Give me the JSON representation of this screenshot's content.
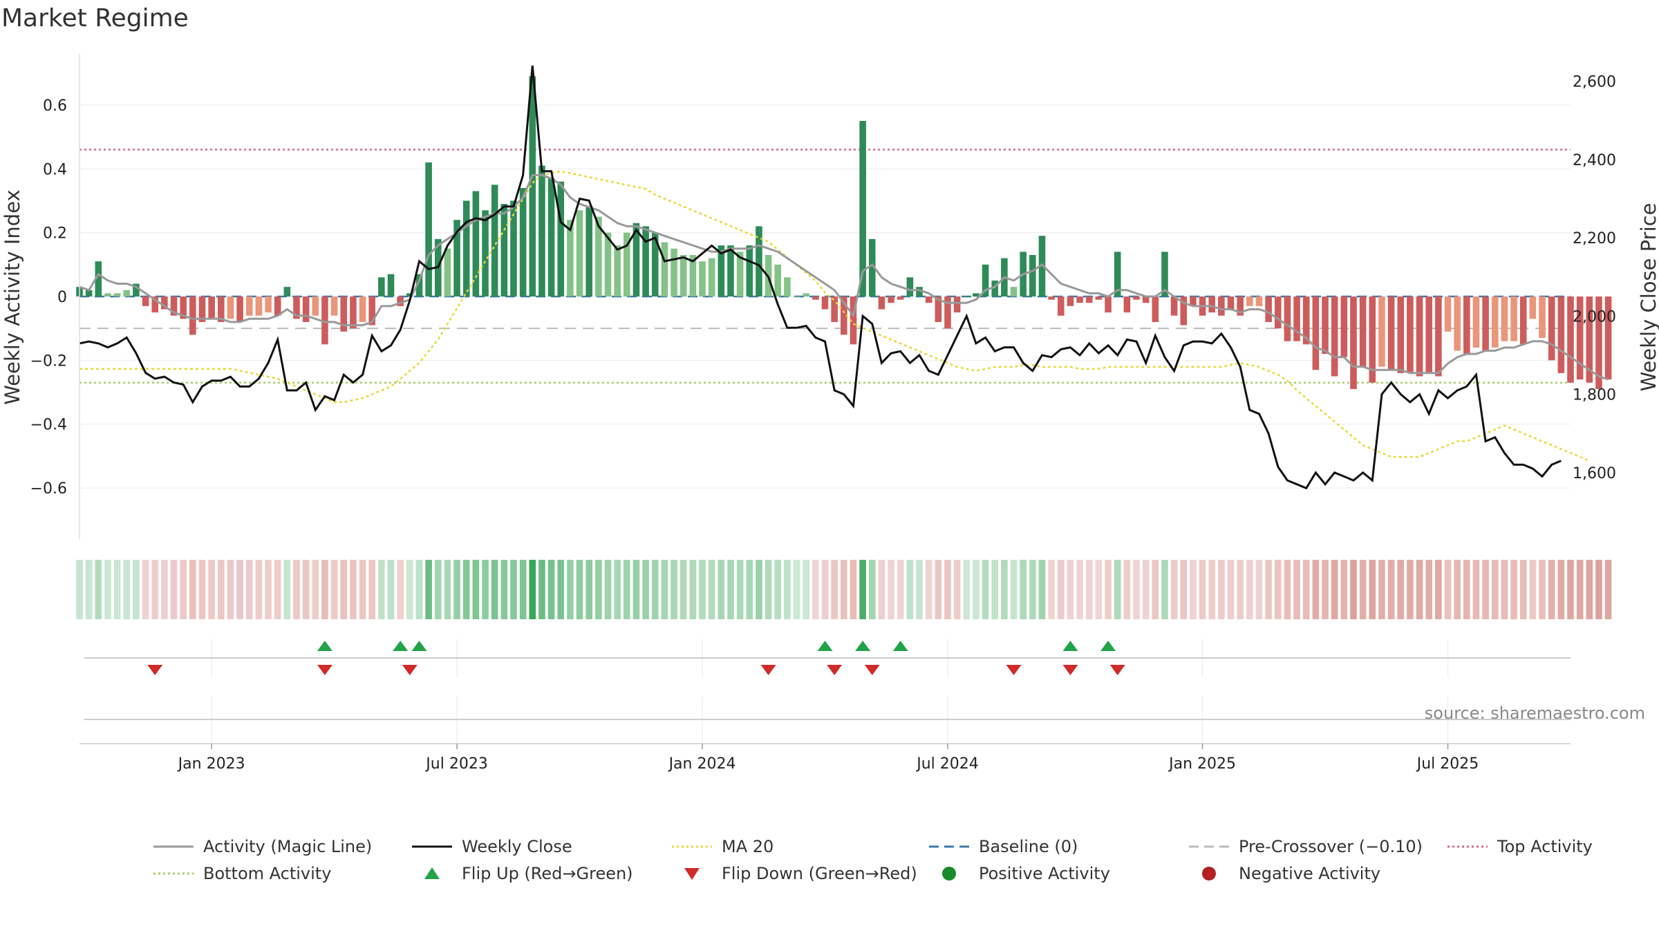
{
  "title": "Market Regime",
  "source": "source: sharemaestro.com",
  "colors": {
    "activity": "#999999",
    "close": "#111111",
    "ma20": "#e8d83a",
    "baseline": "#3a78a8",
    "pre_crossover": "#bbbbbb",
    "top": "#d8678a",
    "bottom": "#a7cc6a",
    "flip_up": "#22a34a",
    "flip_down": "#d12a2a",
    "pos_dark": "#2e8b57",
    "pos_light": "#84c287",
    "neg_dark": "#cd5c5c",
    "neg_light": "#e9967a",
    "pos_point": "#1a8a2a",
    "neg_point": "#b22222"
  },
  "chart_data": {
    "type": "bar",
    "y_left": {
      "label": "Weekly Activity Index",
      "ticks": [
        0.6,
        0.4,
        0.2,
        0,
        -0.2,
        -0.4,
        -0.6
      ],
      "tick_labels": [
        "0.6",
        "0.4",
        "0.2",
        "0",
        "−0.2",
        "−0.4",
        "−0.6"
      ],
      "ylim": [
        -0.76,
        0.76
      ]
    },
    "y_right": {
      "label": "Weekly Close Price",
      "ticks": [
        2600,
        2400,
        2200,
        2000,
        1800,
        1600
      ],
      "tick_labels": [
        "2,600",
        "2,400",
        "2,200",
        "2,000",
        "1,800",
        "1,600"
      ],
      "ylim": [
        1430,
        2670
      ]
    },
    "x_axis": {
      "start": "2022-09-26",
      "end": "2025-10-06",
      "tick_dates": [
        "2023-01-02",
        "2023-07-03",
        "2024-01-01",
        "2024-07-01",
        "2025-01-06",
        "2025-07-07"
      ],
      "tick_labels": [
        "Jan 2023",
        "Jul 2023",
        "Jan 2024",
        "Jul 2024",
        "Jan 2025",
        "Jul 2025"
      ]
    },
    "reference_lines": {
      "baseline": 0,
      "pre_crossover": -0.1,
      "top_activity": 0.46,
      "bottom_activity": -0.27
    },
    "activity_weekly": [
      0.03,
      0.02,
      0.11,
      0.01,
      0.01,
      0.02,
      0.04,
      -0.03,
      -0.05,
      -0.04,
      -0.06,
      -0.07,
      -0.12,
      -0.08,
      -0.07,
      -0.08,
      -0.07,
      -0.08,
      -0.06,
      -0.06,
      -0.05,
      -0.06,
      0.03,
      -0.07,
      -0.08,
      -0.06,
      -0.15,
      -0.06,
      -0.11,
      -0.1,
      -0.08,
      -0.09,
      0.06,
      0.07,
      -0.03,
      0.01,
      0.07,
      0.42,
      0.18,
      0.15,
      0.24,
      0.3,
      0.33,
      0.27,
      0.35,
      0.29,
      0.3,
      0.34,
      0.69,
      0.41,
      0.37,
      0.36,
      0.24,
      0.27,
      0.28,
      0.25,
      0.2,
      0.16,
      0.2,
      0.23,
      0.22,
      0.2,
      0.17,
      0.15,
      0.13,
      0.13,
      0.11,
      0.12,
      0.16,
      0.16,
      0.14,
      0.16,
      0.22,
      0.13,
      0.1,
      0.06,
      0.0,
      0.01,
      -0.01,
      -0.04,
      -0.08,
      -0.12,
      -0.15,
      0.55,
      0.18,
      -0.04,
      -0.02,
      -0.01,
      0.06,
      0.03,
      -0.02,
      -0.08,
      -0.1,
      -0.05,
      0.0,
      0.01,
      0.1,
      0.05,
      0.12,
      0.03,
      0.14,
      0.13,
      0.19,
      -0.01,
      -0.06,
      -0.03,
      -0.02,
      -0.02,
      -0.01,
      -0.05,
      0.14,
      -0.05,
      -0.01,
      -0.02,
      -0.08,
      0.14,
      -0.06,
      -0.09,
      -0.03,
      -0.06,
      -0.05,
      -0.06,
      -0.04,
      -0.06,
      -0.03,
      -0.03,
      -0.08,
      -0.1,
      -0.14,
      -0.14,
      -0.15,
      -0.23,
      -0.18,
      -0.25,
      -0.19,
      -0.29,
      -0.22,
      -0.27,
      -0.22,
      -0.23,
      -0.24,
      -0.24,
      -0.25,
      -0.24,
      -0.25,
      -0.11,
      -0.17,
      -0.18,
      -0.16,
      -0.17,
      -0.16,
      -0.14,
      -0.14,
      -0.15,
      -0.07,
      -0.13,
      -0.2,
      -0.24,
      -0.27,
      -0.26,
      -0.27,
      -0.29,
      -0.26
    ],
    "magic_line_weekly": [
      0.03,
      0.02,
      0.07,
      0.05,
      0.04,
      0.04,
      0.03,
      0.01,
      -0.01,
      -0.03,
      -0.05,
      -0.06,
      -0.07,
      -0.07,
      -0.07,
      -0.07,
      -0.08,
      -0.08,
      -0.07,
      -0.07,
      -0.07,
      -0.06,
      -0.04,
      -0.06,
      -0.06,
      -0.07,
      -0.08,
      -0.08,
      -0.09,
      -0.09,
      -0.09,
      -0.08,
      -0.03,
      -0.03,
      -0.02,
      -0.01,
      0.05,
      0.13,
      0.16,
      0.18,
      0.2,
      0.22,
      0.24,
      0.25,
      0.26,
      0.26,
      0.28,
      0.31,
      0.38,
      0.38,
      0.37,
      0.35,
      0.31,
      0.29,
      0.28,
      0.27,
      0.25,
      0.23,
      0.22,
      0.22,
      0.21,
      0.2,
      0.19,
      0.18,
      0.17,
      0.16,
      0.15,
      0.14,
      0.14,
      0.15,
      0.15,
      0.15,
      0.16,
      0.15,
      0.14,
      0.12,
      0.1,
      0.08,
      0.06,
      0.04,
      0.02,
      -0.02,
      -0.06,
      0.08,
      0.1,
      0.06,
      0.04,
      0.03,
      0.02,
      0.02,
      0.01,
      -0.01,
      -0.02,
      -0.02,
      -0.02,
      -0.01,
      0.02,
      0.03,
      0.06,
      0.05,
      0.07,
      0.08,
      0.1,
      0.07,
      0.04,
      0.03,
      0.02,
      0.01,
      0.01,
      0.0,
      0.02,
      0.02,
      0.01,
      0.0,
      0.0,
      0.02,
      0.0,
      -0.02,
      -0.03,
      -0.03,
      -0.03,
      -0.04,
      -0.04,
      -0.05,
      -0.04,
      -0.04,
      -0.05,
      -0.07,
      -0.09,
      -0.11,
      -0.13,
      -0.16,
      -0.17,
      -0.19,
      -0.19,
      -0.22,
      -0.22,
      -0.23,
      -0.23,
      -0.23,
      -0.23,
      -0.24,
      -0.24,
      -0.24,
      -0.24,
      -0.21,
      -0.19,
      -0.18,
      -0.18,
      -0.17,
      -0.17,
      -0.16,
      -0.16,
      -0.15,
      -0.14,
      -0.14,
      -0.15,
      -0.17,
      -0.19,
      -0.21,
      -0.23,
      -0.25,
      -0.26
    ],
    "close_weekly": [
      1930,
      1935,
      1930,
      1920,
      1930,
      1945,
      1905,
      1855,
      1840,
      1845,
      1830,
      1825,
      1780,
      1820,
      1835,
      1835,
      1845,
      1820,
      1820,
      1840,
      1880,
      1940,
      1810,
      1810,
      1830,
      1760,
      1795,
      1785,
      1850,
      1830,
      1850,
      1950,
      1910,
      1925,
      1965,
      2040,
      2140,
      2120,
      2125,
      2180,
      2215,
      2240,
      2250,
      2245,
      2260,
      2280,
      2280,
      2360,
      2640,
      2370,
      2370,
      2240,
      2220,
      2300,
      2295,
      2230,
      2200,
      2170,
      2180,
      2220,
      2190,
      2200,
      2140,
      2145,
      2150,
      2140,
      2160,
      2180,
      2160,
      2170,
      2150,
      2140,
      2130,
      2100,
      2030,
      1970,
      1970,
      1975,
      1945,
      1935,
      1810,
      1800,
      1770,
      2000,
      1980,
      1880,
      1905,
      1910,
      1880,
      1900,
      1860,
      1850,
      1900,
      1950,
      2000,
      1930,
      1945,
      1910,
      1920,
      1920,
      1880,
      1860,
      1900,
      1895,
      1915,
      1920,
      1900,
      1930,
      1905,
      1925,
      1900,
      1940,
      1935,
      1880,
      1950,
      1895,
      1860,
      1925,
      1935,
      1935,
      1930,
      1955,
      1920,
      1870,
      1760,
      1750,
      1700,
      1615,
      1580,
      1570,
      1560,
      1600,
      1570,
      1600,
      1590,
      1580,
      1600,
      1580,
      1800,
      1830,
      1800,
      1780,
      1800,
      1750,
      1810,
      1790,
      1810,
      1820,
      1850,
      1680,
      1690,
      1650,
      1620,
      1620,
      1610,
      1590,
      1620,
      1630
    ],
    "ma20_weekly": [
      1865,
      1865,
      1865,
      1865,
      1865,
      1865,
      1865,
      1865,
      1865,
      1865,
      1865,
      1865,
      1865,
      1865,
      1865,
      1865,
      1865,
      1860,
      1855,
      1850,
      1845,
      1840,
      1830,
      1820,
      1810,
      1800,
      1790,
      1780,
      1780,
      1785,
      1790,
      1800,
      1810,
      1820,
      1840,
      1860,
      1880,
      1910,
      1940,
      1980,
      2020,
      2060,
      2100,
      2140,
      2180,
      2220,
      2260,
      2300,
      2340,
      2360,
      2365,
      2370,
      2365,
      2360,
      2355,
      2350,
      2345,
      2340,
      2335,
      2330,
      2325,
      2310,
      2300,
      2290,
      2280,
      2270,
      2260,
      2250,
      2240,
      2230,
      2220,
      2210,
      2200,
      2190,
      2170,
      2150,
      2130,
      2110,
      2090,
      2060,
      2040,
      2010,
      1980,
      1970,
      1960,
      1950,
      1940,
      1930,
      1920,
      1910,
      1900,
      1890,
      1880,
      1870,
      1865,
      1860,
      1865,
      1870,
      1870,
      1870,
      1875,
      1875,
      1870,
      1870,
      1870,
      1870,
      1865,
      1865,
      1865,
      1870,
      1870,
      1870,
      1870,
      1870,
      1870,
      1870,
      1870,
      1870,
      1870,
      1870,
      1870,
      1870,
      1875,
      1880,
      1875,
      1870,
      1860,
      1850,
      1835,
      1810,
      1790,
      1770,
      1750,
      1730,
      1710,
      1690,
      1670,
      1660,
      1650,
      1640,
      1640,
      1640,
      1640,
      1650,
      1660,
      1670,
      1680,
      1680,
      1690,
      1700,
      1710,
      1720,
      1710,
      1700,
      1690,
      1680,
      1670,
      1660,
      1650,
      1640,
      1630
    ],
    "flip_up_dates": [
      "2023-03-27",
      "2023-05-22",
      "2023-06-05",
      "2024-04-01",
      "2024-04-29",
      "2024-05-27",
      "2024-09-30",
      "2024-10-28"
    ],
    "flip_down_dates": [
      "2022-11-21",
      "2023-03-27",
      "2023-05-29",
      "2024-02-19",
      "2024-04-08",
      "2024-05-06",
      "2024-08-19",
      "2024-09-30",
      "2024-11-04"
    ]
  },
  "legend": [
    {
      "label": "Activity (Magic Line)",
      "kind": "line",
      "color": "#999999",
      "dash": ""
    },
    {
      "label": "Weekly Close",
      "kind": "line",
      "color": "#111111",
      "dash": ""
    },
    {
      "label": "MA 20",
      "kind": "line",
      "color": "#e8d83a",
      "dash": "3,4"
    },
    {
      "label": "Baseline (0)",
      "kind": "line",
      "color": "#3a78a8",
      "dash": "14,8"
    },
    {
      "label": "Pre-Crossover (−0.10)",
      "kind": "line",
      "color": "#bbbbbb",
      "dash": "14,8"
    },
    {
      "label": "Top Activity",
      "kind": "line",
      "color": "#d8678a",
      "dash": "3,4"
    },
    {
      "label": "Bottom Activity",
      "kind": "line",
      "color": "#a7cc6a",
      "dash": "3,4"
    },
    {
      "label": "Flip Up (Red→Green)",
      "kind": "tri-up",
      "color": "#22a34a",
      "dash": ""
    },
    {
      "label": "Flip Down (Green→Red)",
      "kind": "tri-down",
      "color": "#d12a2a",
      "dash": ""
    },
    {
      "label": "Positive Activity",
      "kind": "dot",
      "color": "#1a8a2a",
      "dash": ""
    },
    {
      "label": "Negative Activity",
      "kind": "dot",
      "color": "#b22222",
      "dash": ""
    }
  ]
}
